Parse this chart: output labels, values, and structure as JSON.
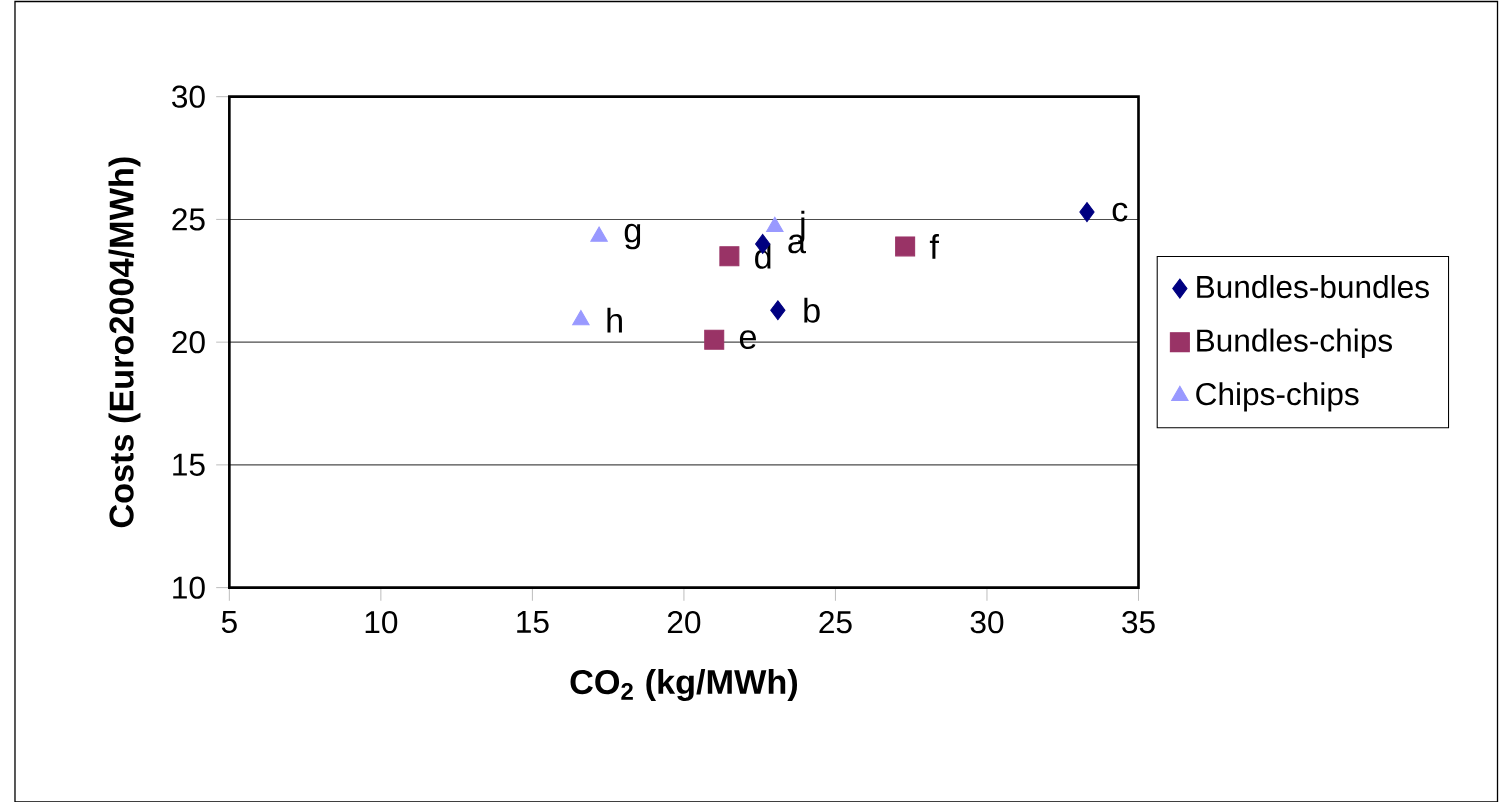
{
  "chart_data": {
    "type": "scatter",
    "xlabel": "CO$_{2}$ (kg/MWh)",
    "ylabel": "Costs (Euro2004/MWh)",
    "xlim": [
      5,
      35
    ],
    "ylim": [
      10,
      30
    ],
    "xticks": [
      5,
      10,
      15,
      20,
      25,
      30,
      35
    ],
    "yticks": [
      10,
      15,
      20,
      25,
      30
    ],
    "grid": "y",
    "legend": "right",
    "series": [
      {
        "name": "Bundles-bundles",
        "color": "#000080",
        "marker": "diamond",
        "x": [
          22.6,
          23.1,
          33.3
        ],
        "values": [
          24.0,
          21.3,
          25.3
        ]
      },
      {
        "name": "Bundles-chips",
        "color": "#993366",
        "marker": "square",
        "x": [
          21.5,
          21.0,
          27.3
        ],
        "values": [
          23.5,
          20.1,
          23.9
        ]
      },
      {
        "name": "Chips-chips",
        "color": "#9999ff",
        "marker": "triangle",
        "x": [
          17.2,
          16.6,
          23.0
        ],
        "values": [
          24.3,
          20.9,
          24.7
        ]
      }
    ],
    "annotations": [
      {
        "text": "a",
        "x": 22.6,
        "y": 24.0
      },
      {
        "text": "b",
        "x": 23.1,
        "y": 21.3
      },
      {
        "text": "c",
        "x": 33.3,
        "y": 25.3
      },
      {
        "text": "d",
        "x": 21.5,
        "y": 23.5
      },
      {
        "text": "e",
        "x": 21.0,
        "y": 20.1
      },
      {
        "text": "f",
        "x": 27.3,
        "y": 23.9
      },
      {
        "text": "g",
        "x": 17.2,
        "y": 24.3
      },
      {
        "text": "h",
        "x": 16.6,
        "y": 20.9
      },
      {
        "text": "j",
        "x": 23.0,
        "y": 24.7
      }
    ]
  }
}
